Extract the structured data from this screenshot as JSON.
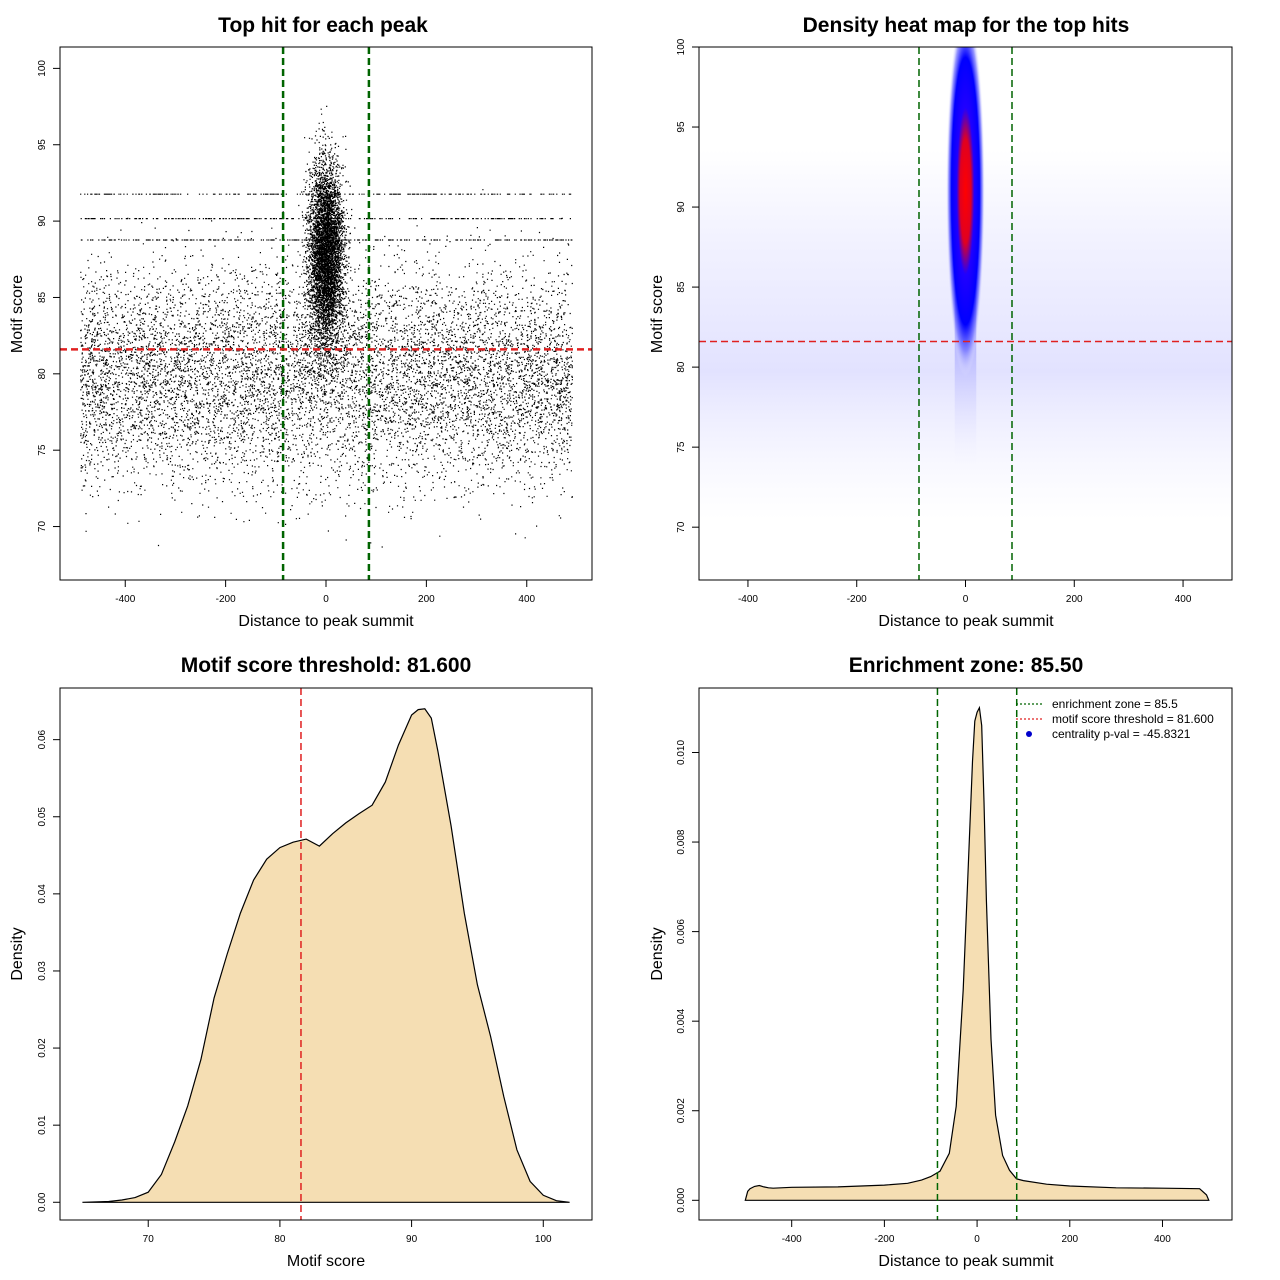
{
  "chart_data": [
    {
      "id": "scatter",
      "type": "scatter",
      "title": "Top hit for each peak",
      "xlabel": "Distance to peak summit",
      "ylabel": "Motif score",
      "xlim": [
        -530,
        530
      ],
      "ylim": [
        66.5,
        101.4
      ],
      "xticks": [
        -400,
        -200,
        0,
        200,
        400
      ],
      "yticks": [
        70,
        75,
        80,
        85,
        90,
        95,
        100
      ],
      "hlines": [
        {
          "y": 81.6,
          "color": "#e02020",
          "style": "dashed"
        }
      ],
      "vlines": [
        {
          "x": -85.5,
          "color": "#006400",
          "style": "dashed"
        },
        {
          "x": 85.5,
          "color": "#006400",
          "style": "dashed"
        }
      ],
      "background_points": {
        "x_range": [
          -490,
          490
        ],
        "y_center": 80,
        "y_spread": 5,
        "y_range": [
          67,
          98
        ]
      },
      "central_cluster": {
        "x_center": 0,
        "x_spread": 45,
        "y_range": [
          72,
          100
        ]
      },
      "point_color": "#000000"
    },
    {
      "id": "heatmap",
      "type": "heatmap",
      "title": "Density heat map for the top hits",
      "xlabel": "Distance to peak summit",
      "ylabel": "Motif score",
      "xlim": [
        -490,
        490
      ],
      "ylim": [
        66.7,
        100
      ],
      "xticks": [
        -400,
        -200,
        0,
        200,
        400
      ],
      "yticks": [
        70,
        75,
        80,
        85,
        90,
        95,
        100
      ],
      "hlines": [
        {
          "y": 81.6,
          "color": "#e02020",
          "style": "dashed"
        }
      ],
      "vlines": [
        {
          "x": -85.5,
          "color": "#006400",
          "style": "dashed"
        },
        {
          "x": 85.5,
          "color": "#006400",
          "style": "dashed"
        }
      ],
      "hotspot": {
        "x": 0,
        "y": 91,
        "x_halfwidth": 30,
        "y_halfheight": 8
      },
      "colors": {
        "low": "#ffffff",
        "mid": "#0000ff",
        "high": "#ff0000"
      }
    },
    {
      "id": "score-density",
      "type": "area",
      "title": "Motif score threshold: 81.600",
      "xlabel": "Motif score",
      "ylabel": "Density",
      "xlim": [
        63.3,
        103.7
      ],
      "ylim": [
        -0.0023,
        0.0667
      ],
      "xticks": [
        70,
        80,
        90,
        100
      ],
      "yticks": [
        0,
        0.01,
        0.02,
        0.03,
        0.04,
        0.05,
        0.06
      ],
      "ytick_labels": [
        "0.00",
        "0.01",
        "0.02",
        "0.03",
        "0.04",
        "0.05",
        "0.06"
      ],
      "fill": "#f5deb3",
      "vlines": [
        {
          "x": 81.6,
          "color": "#e02020",
          "style": "dashed"
        }
      ],
      "x": [
        65,
        67,
        68,
        69,
        70,
        71,
        72,
        73,
        74,
        75,
        76,
        77,
        78,
        79,
        80,
        81,
        82,
        83,
        84,
        85,
        86,
        87,
        88,
        89,
        90,
        90.5,
        91,
        91.5,
        92,
        93,
        94,
        95,
        96,
        97,
        98,
        99,
        100,
        101,
        102
      ],
      "y": [
        0.0,
        0.0001,
        0.0003,
        0.0006,
        0.0013,
        0.0036,
        0.0078,
        0.0125,
        0.0185,
        0.0265,
        0.0322,
        0.0375,
        0.0418,
        0.0445,
        0.046,
        0.0467,
        0.0471,
        0.0462,
        0.0478,
        0.0492,
        0.0504,
        0.0515,
        0.0545,
        0.0593,
        0.0632,
        0.0639,
        0.064,
        0.0628,
        0.0585,
        0.0488,
        0.0375,
        0.0282,
        0.0215,
        0.0137,
        0.0068,
        0.0027,
        0.0009,
        0.0002,
        0.0
      ]
    },
    {
      "id": "distance-density",
      "type": "area",
      "title": "Enrichment zone: 85.50",
      "xlabel": "Distance to peak summit",
      "ylabel": "Density",
      "xlim": [
        -600,
        550
      ],
      "ylim": [
        -0.00044,
        0.01144
      ],
      "xticks": [
        -400,
        -200,
        0,
        200,
        400
      ],
      "yticks": [
        0,
        0.002,
        0.004,
        0.006,
        0.008,
        0.01
      ],
      "ytick_labels": [
        "0.000",
        "0.002",
        "0.004",
        "0.006",
        "0.008",
        "0.010"
      ],
      "fill": "#f5deb3",
      "vlines": [
        {
          "x": -85.5,
          "color": "#006400",
          "style": "dashed"
        },
        {
          "x": 85.5,
          "color": "#006400",
          "style": "dashed"
        }
      ],
      "x": [
        -500,
        -495,
        -490,
        -480,
        -470,
        -460,
        -450,
        -440,
        -400,
        -300,
        -200,
        -150,
        -120,
        -100,
        -80,
        -60,
        -45,
        -30,
        -20,
        -10,
        -5,
        0,
        5,
        10,
        15,
        20,
        30,
        40,
        55,
        70,
        85,
        100,
        150,
        200,
        300,
        400,
        480,
        495,
        500
      ],
      "y": [
        0.0,
        0.0002,
        0.00026,
        0.00031,
        0.00033,
        0.0003,
        0.00028,
        0.00027,
        0.00029,
        0.0003,
        0.00034,
        0.00038,
        0.00045,
        0.00053,
        0.00065,
        0.00105,
        0.0021,
        0.0047,
        0.0072,
        0.0098,
        0.0107,
        0.0109,
        0.011,
        0.0106,
        0.0089,
        0.0067,
        0.0036,
        0.0019,
        0.001,
        0.00067,
        0.00048,
        0.00044,
        0.00036,
        0.00032,
        0.00028,
        0.00027,
        0.00026,
        0.00012,
        0.0
      ],
      "legend": {
        "position": "top-right",
        "entries": [
          {
            "label": "enrichment zone = 85.5",
            "color": "#006400",
            "kind": "line"
          },
          {
            "label": "motif score threshold = 81.600",
            "color": "#e02020",
            "kind": "line"
          },
          {
            "label": "centrality p-val = -45.8321",
            "color": "#0000cc",
            "kind": "point"
          }
        ]
      }
    }
  ]
}
